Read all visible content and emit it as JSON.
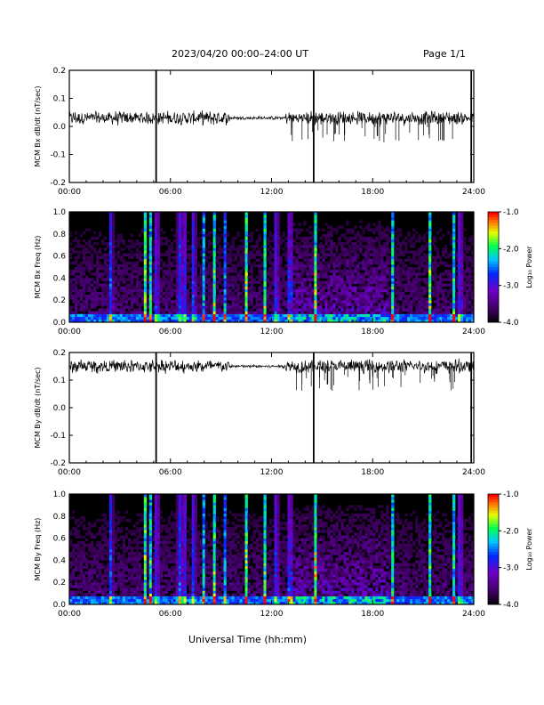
{
  "header": {
    "title": "2023/04/20  00:00–24:00 UT",
    "page": "Page 1/1"
  },
  "x_axis_title": "Universal Time (hh:mm)",
  "chart_data": [
    {
      "type": "line",
      "ylabel": "MCM Bx dB/dt (nT/sec)",
      "x_ticks": [
        "00:00",
        "06:00",
        "12:00",
        "18:00",
        "24:00"
      ],
      "xlim": [
        0,
        24
      ],
      "ylim": [
        -0.2,
        0.2
      ],
      "y_ticks": [
        "-0.2",
        "-0.1",
        "0.0",
        "0.1",
        "0.2"
      ],
      "baseline": 0.03,
      "spikes_hours": [
        5.15,
        14.5,
        23.85
      ],
      "color": "#000000"
    },
    {
      "type": "heatmap",
      "ylabel": "MCM Bx Freq (Hz)",
      "x_ticks": [
        "00:00",
        "06:00",
        "12:00",
        "18:00",
        "24:00"
      ],
      "xlim": [
        0,
        24
      ],
      "ylim": [
        0.0,
        1.0
      ],
      "y_ticks": [
        "0.0",
        "0.2",
        "0.4",
        "0.6",
        "0.8",
        "1.0"
      ],
      "colorbar": {
        "label": "Log₁₀ Power",
        "ticks": [
          "-1.0",
          "-2.0",
          "-3.0",
          "-4.0"
        ],
        "range": [
          -4.0,
          -1.0
        ]
      },
      "bright_bands_hours": [
        2.5,
        4.5,
        4.8,
        5.2,
        6.5,
        6.8,
        7.4,
        8.0,
        8.6,
        9.2,
        10.5,
        11.6,
        12.3,
        13.1,
        14.6,
        19.2,
        21.4,
        22.8,
        23.2
      ]
    },
    {
      "type": "line",
      "ylabel": "MCM By dB/dt (nT/sec)",
      "x_ticks": [
        "00:00",
        "06:00",
        "12:00",
        "18:00",
        "24:00"
      ],
      "xlim": [
        0,
        24
      ],
      "ylim": [
        -0.2,
        0.2
      ],
      "y_ticks": [
        "-0.2",
        "-0.1",
        "0.0",
        "0.1",
        "0.2"
      ],
      "baseline": 0.15,
      "spikes_hours": [
        5.15,
        14.5,
        23.85
      ],
      "color": "#000000"
    },
    {
      "type": "heatmap",
      "ylabel": "MCM By Freq (Hz)",
      "x_ticks": [
        "00:00",
        "06:00",
        "12:00",
        "18:00",
        "24:00"
      ],
      "xlim": [
        0,
        24
      ],
      "ylim": [
        0.0,
        1.0
      ],
      "y_ticks": [
        "0.0",
        "0.2",
        "0.4",
        "0.6",
        "0.8",
        "1.0"
      ],
      "colorbar": {
        "label": "Log₁₀ Power",
        "ticks": [
          "-1.0",
          "-2.0",
          "-3.0",
          "-4.0"
        ],
        "range": [
          -4.0,
          -1.0
        ]
      },
      "bright_bands_hours": [
        2.5,
        4.5,
        4.8,
        5.2,
        6.5,
        6.8,
        7.4,
        8.0,
        8.6,
        9.2,
        10.5,
        11.6,
        12.3,
        13.1,
        14.6,
        19.2,
        21.4,
        22.8,
        23.2
      ]
    }
  ]
}
